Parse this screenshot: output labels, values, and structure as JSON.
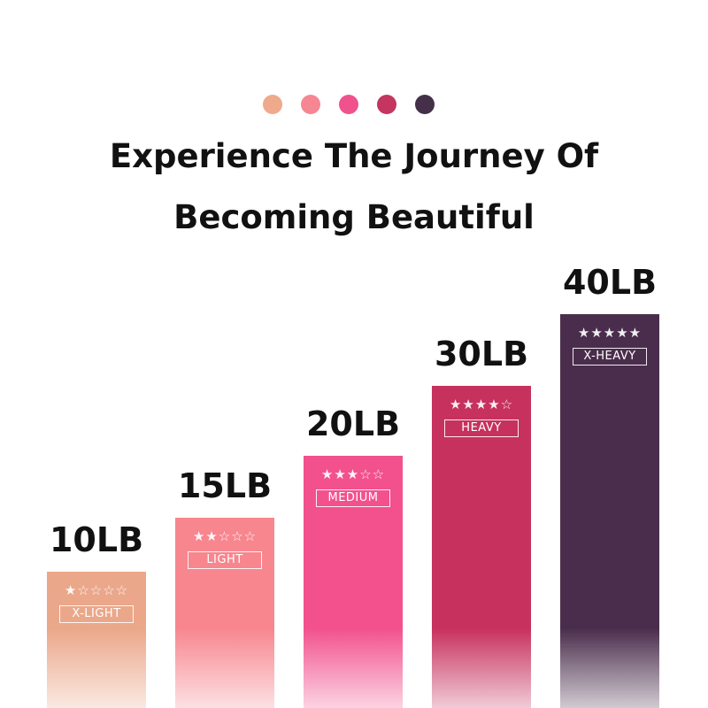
{
  "header": {
    "line1": "Experience The Journey Of",
    "line2": "Becoming Beautiful"
  },
  "dots": [
    "#EFA98C",
    "#F68692",
    "#F0528E",
    "#C43560",
    "#45304A"
  ],
  "chart_data": {
    "type": "bar",
    "categories": [
      "10LB",
      "15LB",
      "20LB",
      "30LB",
      "40LB"
    ],
    "values": [
      10,
      15,
      20,
      30,
      40
    ],
    "levels": [
      "X-LIGHT",
      "LIGHT",
      "MEDIUM",
      "HEAVY",
      "X-HEAVY"
    ],
    "stars": [
      1,
      2,
      3,
      4,
      5
    ],
    "star_labels": [
      "★☆☆☆☆",
      "★★☆☆☆",
      "★★★☆☆",
      "★★★★☆",
      "★★★★★"
    ],
    "colors": [
      "#EBA78A",
      "#F7868F",
      "#F2518D",
      "#C7315E",
      "#4A2D4C"
    ],
    "title": "",
    "xlabel": "",
    "ylabel": "",
    "grid": false
  }
}
